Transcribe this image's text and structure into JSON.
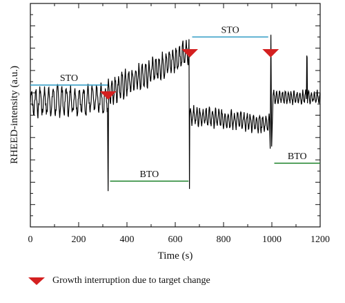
{
  "chart_data": {
    "type": "line",
    "xlabel": "Time (s)",
    "ylabel": "RHEED-intensity (a.u.)",
    "xlim": [
      0,
      1200
    ],
    "xticks": [
      0,
      200,
      400,
      600,
      800,
      1000,
      1200
    ],
    "y_tick_labels_shown": false,
    "grid": false,
    "series": [
      {
        "segments": [
          {
            "x_start": 0,
            "x_end": 320,
            "y_mean": 0.56,
            "amplitude": 0.055,
            "period_s": 18,
            "trend": 0.01
          },
          {
            "x_start": 320,
            "x_end": 655,
            "y_start": 0.6,
            "y_end": 0.78,
            "amplitude": 0.05,
            "period_s": 14
          },
          {
            "x_start": 660,
            "x_end": 990,
            "y_start": 0.5,
            "y_end": 0.46,
            "amplitude": 0.035,
            "period_s": 13
          },
          {
            "x_start": 1005,
            "x_end": 1200,
            "y_mean": 0.58,
            "amplitude": 0.025,
            "period_s": 12,
            "spike_at": 1145
          }
        ]
      }
    ],
    "layer_annotations": [
      {
        "label": "STO",
        "x_start": 0,
        "x_end": 320,
        "y": 0.635,
        "color": "#3aa0c8"
      },
      {
        "label": "BTO",
        "x_start": 330,
        "x_end": 655,
        "y": 0.205,
        "color": "#2e8b3a"
      },
      {
        "label": "STO",
        "x_start": 670,
        "x_end": 985,
        "y": 0.85,
        "color": "#3aa0c8"
      },
      {
        "label": "BTO",
        "x_start": 1010,
        "x_end": 1200,
        "y": 0.285,
        "color": "#2e8b3a"
      }
    ],
    "interruption_markers_x": [
      322,
      660,
      995
    ],
    "marker_color": "#d42020",
    "legend": {
      "label": "Growth interruption due to target change",
      "placement": "bottom-left"
    }
  }
}
